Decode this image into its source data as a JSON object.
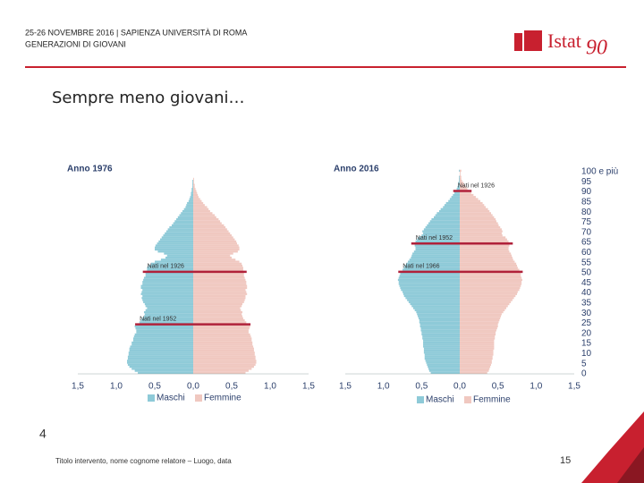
{
  "header": {
    "event": "25-26 NOVEMBRE 2016 | SAPIENZA UNIVERSITÀ DI ROMA",
    "section": "GENERAZIONI DI GIOVANI",
    "logo": "Istat",
    "logo_mark": "90"
  },
  "title": "Sempre meno giovani…",
  "slide_number": "4",
  "footer": {
    "text": "Titolo intervento, nome cognome relatore – Luogo, data",
    "page": "15"
  },
  "chart_data": [
    {
      "type": "pyramid",
      "title": "Anno 1976",
      "y": [
        0,
        1,
        2,
        3,
        4,
        5,
        6,
        7,
        8,
        9,
        10,
        11,
        12,
        13,
        14,
        15,
        16,
        17,
        18,
        19,
        20,
        21,
        22,
        23,
        24,
        25,
        26,
        27,
        28,
        29,
        30,
        31,
        32,
        33,
        34,
        35,
        36,
        37,
        38,
        39,
        40,
        41,
        42,
        43,
        44,
        45,
        46,
        47,
        48,
        49,
        50,
        51,
        52,
        53,
        54,
        55,
        56,
        57,
        58,
        59,
        60,
        61,
        62,
        63,
        64,
        65,
        66,
        67,
        68,
        69,
        70,
        71,
        72,
        73,
        74,
        75,
        76,
        77,
        78,
        79,
        80,
        81,
        82,
        83,
        84,
        85,
        86,
        87,
        88,
        89,
        90,
        91,
        92,
        93,
        94,
        95,
        96,
        97,
        98,
        99,
        100
      ],
      "series": [
        {
          "name": "Maschi",
          "color": "#8ecad8",
          "values": [
            -0.72,
            -0.76,
            -0.8,
            -0.83,
            -0.85,
            -0.86,
            -0.86,
            -0.85,
            -0.85,
            -0.84,
            -0.84,
            -0.83,
            -0.83,
            -0.82,
            -0.8,
            -0.8,
            -0.78,
            -0.78,
            -0.77,
            -0.76,
            -0.74,
            -0.74,
            -0.75,
            -0.76,
            -0.72,
            -0.7,
            -0.68,
            -0.66,
            -0.64,
            -0.63,
            -0.64,
            -0.62,
            -0.6,
            -0.62,
            -0.63,
            -0.65,
            -0.66,
            -0.67,
            -0.66,
            -0.68,
            -0.67,
            -0.66,
            -0.68,
            -0.68,
            -0.66,
            -0.66,
            -0.65,
            -0.64,
            -0.62,
            -0.62,
            -0.62,
            -0.6,
            -0.6,
            -0.58,
            -0.55,
            -0.5,
            -0.42,
            -0.36,
            -0.34,
            -0.38,
            -0.46,
            -0.5,
            -0.5,
            -0.49,
            -0.47,
            -0.45,
            -0.43,
            -0.41,
            -0.39,
            -0.37,
            -0.35,
            -0.33,
            -0.31,
            -0.28,
            -0.26,
            -0.24,
            -0.22,
            -0.2,
            -0.18,
            -0.16,
            -0.14,
            -0.12,
            -0.1,
            -0.09,
            -0.08,
            -0.06,
            -0.05,
            -0.04,
            -0.03,
            -0.03,
            -0.02,
            -0.02,
            -0.01,
            -0.01,
            -0.01,
            -0.01,
            0,
            0,
            0,
            0,
            0
          ]
        },
        {
          "name": "Femmine",
          "color": "#f0c8c0",
          "values": [
            0.68,
            0.72,
            0.76,
            0.79,
            0.81,
            0.82,
            0.82,
            0.81,
            0.81,
            0.8,
            0.8,
            0.79,
            0.79,
            0.78,
            0.77,
            0.77,
            0.76,
            0.76,
            0.75,
            0.74,
            0.72,
            0.72,
            0.73,
            0.74,
            0.71,
            0.69,
            0.67,
            0.65,
            0.64,
            0.63,
            0.64,
            0.62,
            0.61,
            0.63,
            0.64,
            0.66,
            0.67,
            0.68,
            0.68,
            0.7,
            0.69,
            0.68,
            0.7,
            0.7,
            0.69,
            0.69,
            0.68,
            0.67,
            0.66,
            0.66,
            0.66,
            0.65,
            0.65,
            0.64,
            0.63,
            0.6,
            0.55,
            0.5,
            0.48,
            0.52,
            0.58,
            0.6,
            0.6,
            0.59,
            0.57,
            0.56,
            0.54,
            0.52,
            0.5,
            0.48,
            0.46,
            0.44,
            0.42,
            0.4,
            0.37,
            0.35,
            0.33,
            0.3,
            0.28,
            0.25,
            0.22,
            0.2,
            0.18,
            0.15,
            0.13,
            0.11,
            0.09,
            0.07,
            0.06,
            0.05,
            0.04,
            0.03,
            0.02,
            0.02,
            0.01,
            0.01,
            0.01,
            0,
            0,
            0,
            0
          ]
        }
      ],
      "xlim": [
        -1.5,
        1.5
      ],
      "xticks": [
        {
          "value": -1.5,
          "label": "1,5"
        },
        {
          "value": -1.0,
          "label": "1,0"
        },
        {
          "value": -0.5,
          "label": "0,5"
        },
        {
          "value": 0,
          "label": "0,0"
        },
        {
          "value": 0.5,
          "label": "0,5"
        },
        {
          "value": 1.0,
          "label": "1,0"
        },
        {
          "value": 1.5,
          "label": "1,5"
        }
      ],
      "ylim": [
        0,
        100
      ],
      "annotations": [
        {
          "text": "Nati nel 1926",
          "y": 50
        },
        {
          "text": "Nati nel 1952",
          "y": 24
        }
      ],
      "annotation_color": "#b0213a"
    },
    {
      "type": "pyramid",
      "title": "Anno 2016",
      "y": [
        0,
        1,
        2,
        3,
        4,
        5,
        6,
        7,
        8,
        9,
        10,
        11,
        12,
        13,
        14,
        15,
        16,
        17,
        18,
        19,
        20,
        21,
        22,
        23,
        24,
        25,
        26,
        27,
        28,
        29,
        30,
        31,
        32,
        33,
        34,
        35,
        36,
        37,
        38,
        39,
        40,
        41,
        42,
        43,
        44,
        45,
        46,
        47,
        48,
        49,
        50,
        51,
        52,
        53,
        54,
        55,
        56,
        57,
        58,
        59,
        60,
        61,
        62,
        63,
        64,
        65,
        66,
        67,
        68,
        69,
        70,
        71,
        72,
        73,
        74,
        75,
        76,
        77,
        78,
        79,
        80,
        81,
        82,
        83,
        84,
        85,
        86,
        87,
        88,
        89,
        90,
        91,
        92,
        93,
        94,
        95,
        96,
        97,
        98,
        99,
        100
      ],
      "series": [
        {
          "name": "Maschi",
          "color": "#8ecad8",
          "values": [
            -0.38,
            -0.4,
            -0.41,
            -0.42,
            -0.43,
            -0.44,
            -0.45,
            -0.46,
            -0.46,
            -0.46,
            -0.47,
            -0.47,
            -0.47,
            -0.48,
            -0.48,
            -0.48,
            -0.48,
            -0.49,
            -0.49,
            -0.5,
            -0.5,
            -0.51,
            -0.51,
            -0.52,
            -0.52,
            -0.53,
            -0.53,
            -0.54,
            -0.55,
            -0.56,
            -0.57,
            -0.59,
            -0.61,
            -0.63,
            -0.65,
            -0.67,
            -0.69,
            -0.71,
            -0.73,
            -0.74,
            -0.75,
            -0.77,
            -0.78,
            -0.79,
            -0.8,
            -0.8,
            -0.81,
            -0.8,
            -0.79,
            -0.78,
            -0.77,
            -0.75,
            -0.73,
            -0.72,
            -0.7,
            -0.68,
            -0.66,
            -0.64,
            -0.63,
            -0.62,
            -0.6,
            -0.58,
            -0.58,
            -0.59,
            -0.6,
            -0.58,
            -0.56,
            -0.54,
            -0.5,
            -0.48,
            -0.49,
            -0.47,
            -0.45,
            -0.43,
            -0.41,
            -0.39,
            -0.37,
            -0.34,
            -0.32,
            -0.3,
            -0.27,
            -0.25,
            -0.22,
            -0.2,
            -0.18,
            -0.15,
            -0.13,
            -0.11,
            -0.09,
            -0.07,
            -0.05,
            -0.04,
            -0.03,
            -0.02,
            -0.02,
            -0.01,
            -0.01,
            -0.01,
            0,
            0,
            -0.01
          ]
        },
        {
          "name": "Femmine",
          "color": "#f0c8c0",
          "values": [
            0.36,
            0.38,
            0.39,
            0.4,
            0.41,
            0.42,
            0.42,
            0.43,
            0.43,
            0.44,
            0.44,
            0.44,
            0.45,
            0.45,
            0.45,
            0.45,
            0.45,
            0.46,
            0.46,
            0.47,
            0.47,
            0.48,
            0.49,
            0.5,
            0.5,
            0.51,
            0.52,
            0.53,
            0.54,
            0.55,
            0.57,
            0.59,
            0.61,
            0.63,
            0.65,
            0.67,
            0.69,
            0.71,
            0.73,
            0.75,
            0.76,
            0.78,
            0.79,
            0.8,
            0.81,
            0.81,
            0.82,
            0.81,
            0.8,
            0.8,
            0.79,
            0.78,
            0.76,
            0.75,
            0.74,
            0.72,
            0.7,
            0.69,
            0.68,
            0.67,
            0.65,
            0.64,
            0.64,
            0.65,
            0.66,
            0.64,
            0.62,
            0.6,
            0.56,
            0.55,
            0.56,
            0.55,
            0.53,
            0.51,
            0.5,
            0.48,
            0.47,
            0.45,
            0.43,
            0.41,
            0.39,
            0.37,
            0.34,
            0.32,
            0.3,
            0.27,
            0.24,
            0.21,
            0.18,
            0.15,
            0.12,
            0.1,
            0.08,
            0.06,
            0.05,
            0.03,
            0.02,
            0.02,
            0.01,
            0.01,
            0.02
          ]
        }
      ],
      "xlim": [
        -1.5,
        1.5
      ],
      "xticks": [
        {
          "value": -1.5,
          "label": "1,5"
        },
        {
          "value": -1.0,
          "label": "1,0"
        },
        {
          "value": -0.5,
          "label": "0,5"
        },
        {
          "value": 0,
          "label": "0,0"
        },
        {
          "value": 0.5,
          "label": "0,5"
        },
        {
          "value": 1.0,
          "label": "1,0"
        },
        {
          "value": 1.5,
          "label": "1,5"
        }
      ],
      "ylim": [
        0,
        100
      ],
      "yticks": [
        {
          "value": 100,
          "label": "100 e più"
        },
        95,
        90,
        85,
        80,
        75,
        70,
        65,
        60,
        55,
        50,
        45,
        40,
        35,
        30,
        25,
        20,
        15,
        10,
        5,
        0
      ],
      "annotations": [
        {
          "text": "Nati nel 1926",
          "y": 90
        },
        {
          "text": "Nati nel 1952",
          "y": 64
        },
        {
          "text": "Nati nel 1966",
          "y": 50
        }
      ],
      "annotation_color": "#b0213a"
    }
  ]
}
